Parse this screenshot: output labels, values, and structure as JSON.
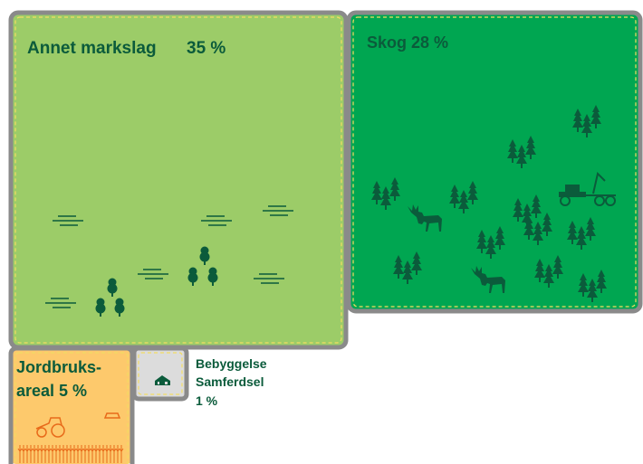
{
  "blocks": [
    {
      "name": "Annet markslag",
      "share": "35 %"
    },
    {
      "label": "Skog 28 %"
    },
    {
      "lines": [
        "Jordbruks-",
        "areal 5 %"
      ]
    },
    {
      "lines": [
        "Bebyggelse",
        "Samferdsel",
        "1 %"
      ]
    }
  ]
}
